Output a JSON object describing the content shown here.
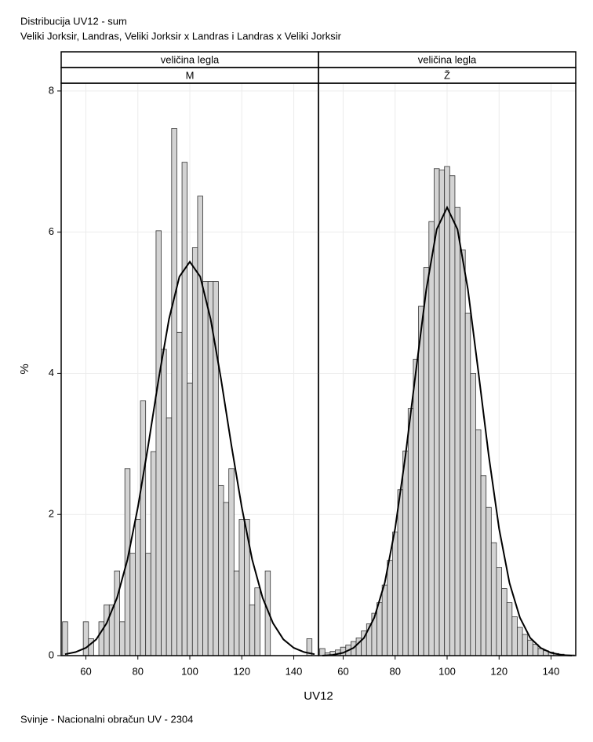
{
  "header": {
    "title": "Distribucija UV12 - sum",
    "subtitle": "Veliki Jorksir, Landras, Veliki Jorksir x Landras i Landras x Veliki Jorksir",
    "footer": "Svinje - Nacionalni obračun UV - 2304"
  },
  "axes": {
    "xlabel": "UV12",
    "ylabel": "%"
  },
  "chart_data": [
    {
      "type": "histogram",
      "strip": [
        "veličina legla",
        "M"
      ],
      "color": "#d3d3d3",
      "grid": true,
      "bins": [
        51,
        53,
        55,
        57,
        59,
        61,
        63,
        65,
        67,
        69,
        71,
        73,
        75,
        77,
        79,
        81,
        83,
        85,
        87,
        89,
        91,
        93,
        95,
        97,
        99,
        101,
        103,
        105,
        107,
        109,
        111,
        113,
        115,
        117,
        119,
        121,
        123,
        125,
        127,
        129,
        131,
        133,
        135,
        137,
        139,
        141,
        143,
        145,
        147,
        149
      ],
      "values": [
        0.48,
        0,
        0,
        0,
        0.48,
        0.24,
        0,
        0.48,
        0.72,
        0.72,
        1.2,
        0.48,
        2.65,
        1.45,
        1.93,
        3.61,
        1.45,
        2.89,
        6.02,
        4.34,
        3.37,
        7.47,
        4.58,
        6.99,
        3.86,
        5.78,
        6.51,
        5.3,
        5.3,
        5.3,
        2.41,
        2.17,
        2.65,
        1.2,
        1.93,
        1.93,
        0.72,
        0.96,
        0,
        1.2,
        0,
        0,
        0,
        0,
        0,
        0,
        0,
        0.24,
        0
      ],
      "curve": {
        "x": [
          52,
          56,
          60,
          64,
          68,
          72,
          76,
          80,
          84,
          88,
          92,
          96,
          100,
          104,
          108,
          112,
          116,
          120,
          124,
          128,
          132,
          136,
          140,
          144,
          148
        ],
        "values": [
          0.02,
          0.05,
          0.11,
          0.23,
          0.46,
          0.82,
          1.36,
          2.1,
          2.98,
          3.92,
          4.77,
          5.37,
          5.58,
          5.37,
          4.77,
          3.92,
          2.98,
          2.1,
          1.36,
          0.82,
          0.46,
          0.23,
          0.11,
          0.05,
          0.02
        ]
      },
      "xlim": [
        50.5,
        149.5
      ],
      "xticks": [
        60,
        80,
        100,
        120,
        140
      ],
      "ylim": [
        0,
        8.11
      ],
      "yticks": [
        0,
        2,
        4,
        6,
        8
      ]
    },
    {
      "type": "histogram",
      "strip": [
        "veličina legla",
        "Ž"
      ],
      "color": "#d3d3d3",
      "grid": true,
      "bins": [
        51,
        53,
        55,
        57,
        59,
        61,
        63,
        65,
        67,
        69,
        71,
        73,
        75,
        77,
        79,
        81,
        83,
        85,
        87,
        89,
        91,
        93,
        95,
        97,
        99,
        101,
        103,
        105,
        107,
        109,
        111,
        113,
        115,
        117,
        119,
        121,
        123,
        125,
        127,
        129,
        131,
        133,
        135,
        137,
        139,
        141,
        143,
        145,
        147,
        149
      ],
      "values": [
        0.1,
        0.04,
        0.06,
        0.08,
        0.12,
        0.15,
        0.2,
        0.25,
        0.35,
        0.45,
        0.6,
        0.75,
        1.0,
        1.35,
        1.75,
        2.35,
        2.9,
        3.5,
        4.2,
        4.95,
        5.5,
        6.15,
        6.9,
        6.88,
        6.93,
        6.8,
        6.35,
        5.75,
        4.85,
        4.0,
        3.2,
        2.55,
        2.1,
        1.6,
        1.25,
        0.95,
        0.75,
        0.55,
        0.4,
        0.3,
        0.22,
        0.16,
        0.1,
        0.07,
        0.05,
        0.03,
        0.02,
        0.01,
        0.01
      ],
      "curve": {
        "x": [
          52,
          56,
          60,
          64,
          68,
          72,
          76,
          80,
          84,
          88,
          92,
          96,
          100,
          104,
          108,
          112,
          116,
          120,
          124,
          128,
          132,
          136,
          140,
          144,
          148
        ],
        "values": [
          0,
          0.01,
          0.04,
          0.11,
          0.25,
          0.54,
          1.03,
          1.8,
          2.84,
          4.03,
          5.19,
          6.04,
          6.35,
          6.04,
          5.19,
          4.03,
          2.84,
          1.8,
          1.03,
          0.54,
          0.25,
          0.11,
          0.04,
          0.01,
          0
        ]
      },
      "xlim": [
        50.5,
        149.5
      ],
      "xticks": [
        60,
        80,
        100,
        120,
        140
      ],
      "ylim": [
        0,
        8.11
      ],
      "yticks": [
        0,
        2,
        4,
        6,
        8
      ]
    }
  ]
}
